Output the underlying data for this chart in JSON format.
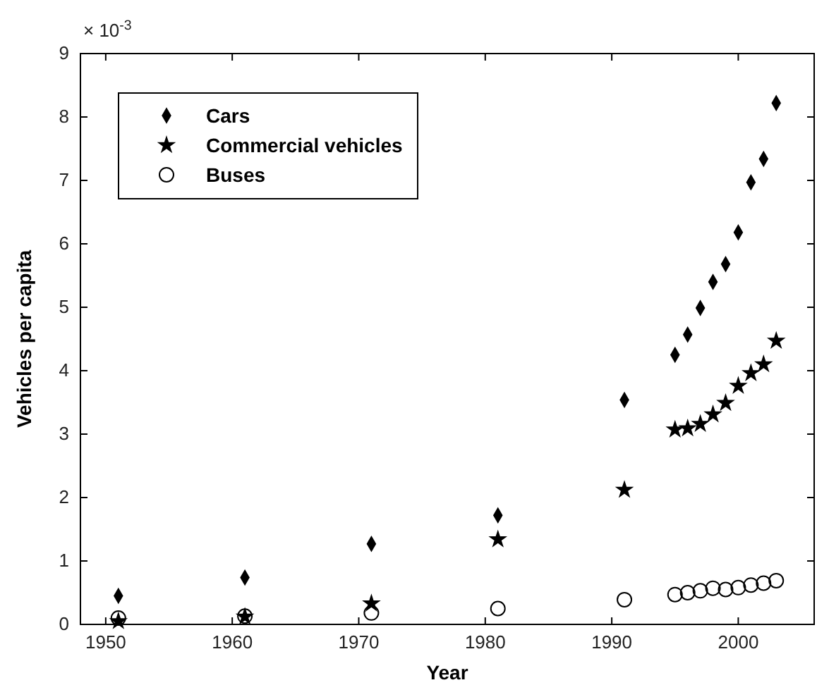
{
  "chart_data": {
    "type": "scatter",
    "xlabel": "Year",
    "ylabel": "Vehicles per capita",
    "annotations": [
      "× 10$^{-3}$"
    ],
    "xlim": [
      1948,
      2006
    ],
    "xticks": [
      1950,
      1960,
      1970,
      1980,
      1990,
      2000
    ],
    "ylim": [
      0,
      9
    ],
    "yticks": [
      0,
      1,
      2,
      3,
      4,
      5,
      6,
      7,
      8,
      9
    ],
    "x": [
      1951,
      1961,
      1971,
      1981,
      1991,
      1995,
      1996,
      1997,
      1998,
      1999,
      2000,
      2001,
      2002,
      2003
    ],
    "legend": "top left",
    "grid": false,
    "series": [
      {
        "name": "Cars",
        "color": "#000000",
        "marker": "diamond",
        "values": [
          0.45,
          0.74,
          1.27,
          1.72,
          3.54,
          4.25,
          4.57,
          4.99,
          5.4,
          5.68,
          6.18,
          6.97,
          7.34,
          8.22
        ]
      },
      {
        "name": "Commercial vehicles",
        "color": "#000000",
        "marker": "star",
        "values": [
          0.05,
          0.12,
          0.33,
          1.34,
          2.12,
          3.07,
          3.09,
          3.16,
          3.31,
          3.49,
          3.76,
          3.96,
          4.1,
          4.47
        ]
      },
      {
        "name": "Buses",
        "color": "#000000",
        "marker": "circle",
        "values": [
          0.1,
          0.13,
          0.18,
          0.25,
          0.39,
          0.47,
          0.5,
          0.53,
          0.57,
          0.55,
          0.58,
          0.62,
          0.65,
          0.69
        ]
      }
    ]
  }
}
